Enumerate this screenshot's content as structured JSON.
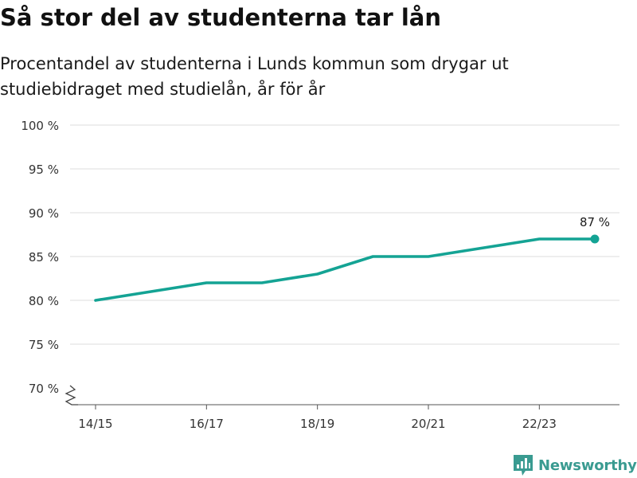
{
  "header": {
    "title": "Så stor del av studenterna tar lån",
    "subtitle": "Procentandel av studenterna i Lunds kommun som drygar ut studiebidraget med studielån, år för år"
  },
  "brand": {
    "name": "Newsworthy",
    "icon": "bar-chart-logo-icon",
    "color": "#3a9b91"
  },
  "chart_data": {
    "type": "line",
    "title": "Så stor del av studenterna tar lån",
    "subtitle": "Procentandel av studenterna i Lunds kommun som drygar ut studiebidraget med studielån, år för år",
    "x": [
      "14/15",
      "15/16",
      "16/17",
      "17/18",
      "18/19",
      "19/20",
      "20/21",
      "21/22",
      "22/23",
      "23/24"
    ],
    "x_tick_labels": [
      "14/15",
      "16/17",
      "18/19",
      "20/21",
      "22/23"
    ],
    "series": [
      {
        "values": [
          80,
          81,
          82,
          82,
          83,
          85,
          85,
          86,
          87,
          87
        ],
        "color": "#14a394"
      }
    ],
    "y_ticks": [
      70,
      75,
      80,
      85,
      90,
      95,
      100
    ],
    "y_tick_suffix": " %",
    "ylim": [
      70,
      100
    ],
    "axis_break": true,
    "grid": true,
    "end_label": "87 %",
    "xlabel": "",
    "ylabel": ""
  }
}
